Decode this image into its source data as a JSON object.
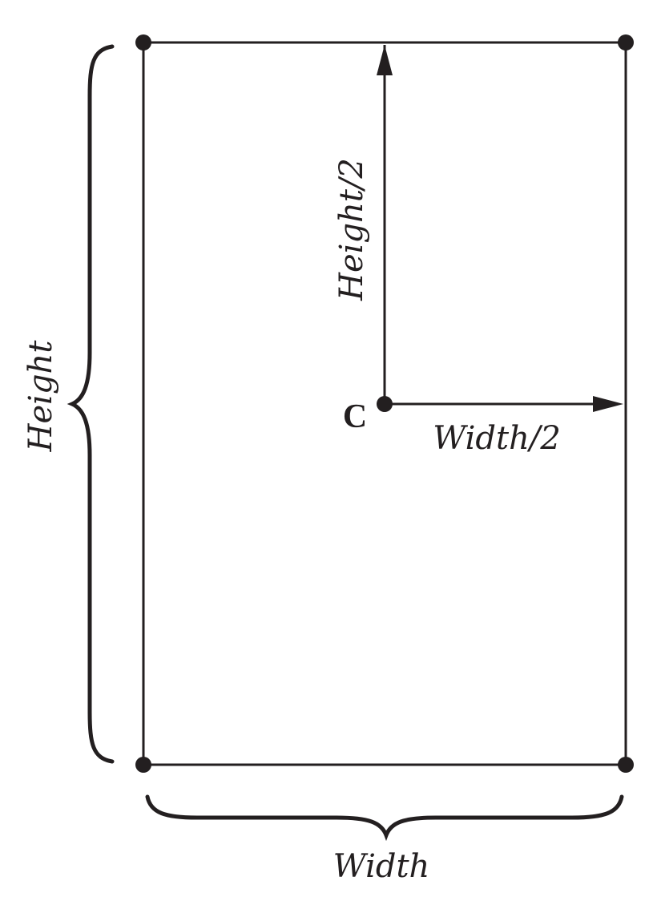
{
  "diagram": {
    "center_label": "C",
    "half_width_label": "Width/2",
    "half_height_label": "Height/2",
    "width_label": "Width",
    "height_label": "Height"
  },
  "colors": {
    "stroke": "#231f20",
    "background": "#ffffff"
  }
}
